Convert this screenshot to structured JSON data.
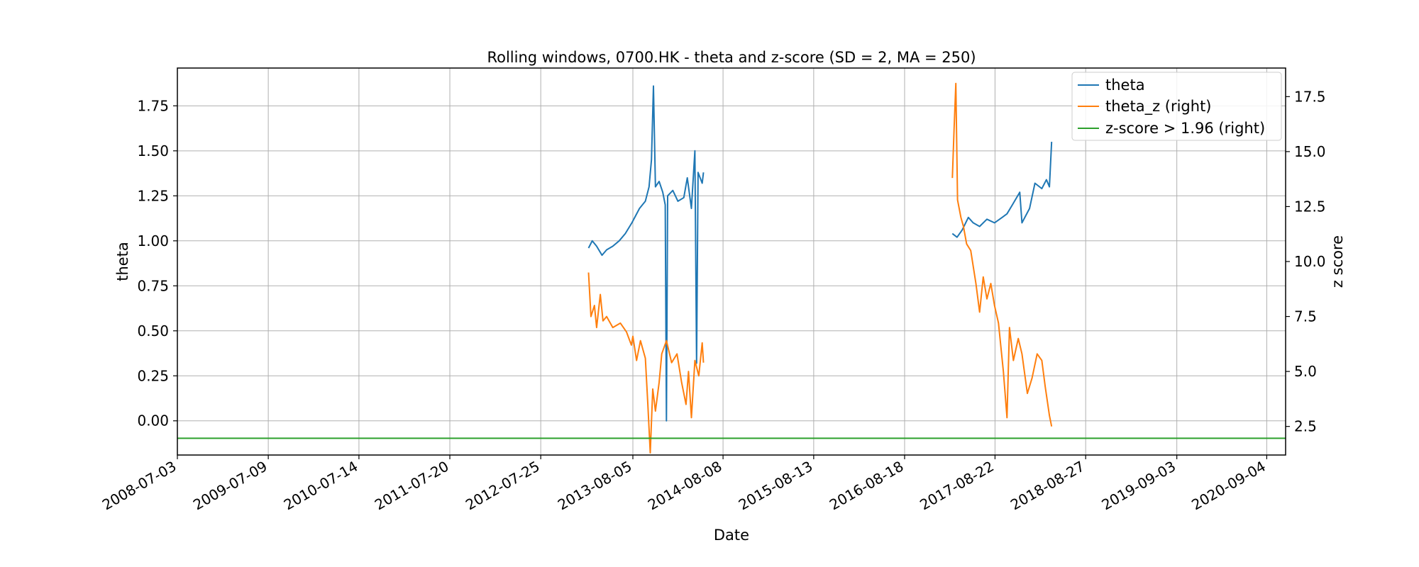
{
  "chart_data": {
    "type": "line",
    "title": "Rolling windows, 0700.HK - theta and z-score (SD = 2, MA = 250)",
    "xlabel": "Date",
    "ylabel": "theta",
    "ylabel_right": "z score",
    "xlim": [
      "2008-07-03",
      "2020-11-20"
    ],
    "ylim": [
      -0.19,
      1.96
    ],
    "ylim_right": [
      1.2,
      18.8
    ],
    "x_tick_labels": [
      "2008-07-03",
      "2009-07-09",
      "2010-07-14",
      "2011-07-20",
      "2012-07-25",
      "2013-08-05",
      "2014-08-08",
      "2015-08-13",
      "2016-08-18",
      "2017-08-22",
      "2018-08-27",
      "2019-09-03",
      "2020-09-04"
    ],
    "y_ticks": [
      0.0,
      0.25,
      0.5,
      0.75,
      1.0,
      1.25,
      1.5,
      1.75
    ],
    "y_tick_labels": [
      "0.00",
      "0.25",
      "0.50",
      "0.75",
      "1.00",
      "1.25",
      "1.50",
      "1.75"
    ],
    "y_ticks_right": [
      2.5,
      5.0,
      7.5,
      10.0,
      12.5,
      15.0,
      17.5
    ],
    "y_tick_labels_right": [
      "2.5",
      "5.0",
      "7.5",
      "10.0",
      "12.5",
      "15.0",
      "17.5"
    ],
    "grid": true,
    "legend_position": "top-right",
    "series": [
      {
        "name": "theta",
        "axis": "left",
        "color": "#1f77b4",
        "segments": [
          [
            [
              "2013-02-05",
              0.96
            ],
            [
              "2013-02-20",
              1.0
            ],
            [
              "2013-03-10",
              0.97
            ],
            [
              "2013-04-01",
              0.92
            ],
            [
              "2013-04-20",
              0.95
            ],
            [
              "2013-05-15",
              0.97
            ],
            [
              "2013-06-10",
              1.0
            ],
            [
              "2013-07-05",
              1.04
            ],
            [
              "2013-08-01",
              1.1
            ],
            [
              "2013-09-01",
              1.18
            ],
            [
              "2013-09-25",
              1.22
            ],
            [
              "2013-10-10",
              1.3
            ],
            [
              "2013-10-20",
              1.45
            ],
            [
              "2013-10-28",
              1.86
            ],
            [
              "2013-11-05",
              1.3
            ],
            [
              "2013-11-20",
              1.33
            ],
            [
              "2013-12-05",
              1.27
            ],
            [
              "2013-12-15",
              1.2
            ],
            [
              "2013-12-20",
              0.0
            ],
            [
              "2013-12-25",
              1.25
            ],
            [
              "2014-01-15",
              1.28
            ],
            [
              "2014-02-05",
              1.22
            ],
            [
              "2014-03-01",
              1.24
            ],
            [
              "2014-03-15",
              1.35
            ],
            [
              "2014-04-01",
              1.18
            ],
            [
              "2014-04-15",
              1.5
            ],
            [
              "2014-04-22",
              0.32
            ],
            [
              "2014-04-28",
              1.38
            ],
            [
              "2014-05-15",
              1.32
            ],
            [
              "2014-05-20",
              1.38
            ]
          ],
          [
            [
              "2017-03-01",
              1.04
            ],
            [
              "2017-03-20",
              1.02
            ],
            [
              "2017-04-10",
              1.06
            ],
            [
              "2017-05-05",
              1.13
            ],
            [
              "2017-05-25",
              1.1
            ],
            [
              "2017-06-20",
              1.08
            ],
            [
              "2017-07-20",
              1.12
            ],
            [
              "2017-08-20",
              1.1
            ],
            [
              "2017-09-20",
              1.13
            ],
            [
              "2017-10-10",
              1.15
            ],
            [
              "2017-11-01",
              1.2
            ],
            [
              "2017-12-01",
              1.27
            ],
            [
              "2017-12-10",
              1.1
            ],
            [
              "2018-01-10",
              1.18
            ],
            [
              "2018-02-01",
              1.32
            ],
            [
              "2018-03-01",
              1.29
            ],
            [
              "2018-03-20",
              1.34
            ],
            [
              "2018-04-01",
              1.3
            ],
            [
              "2018-04-10",
              1.55
            ]
          ]
        ]
      },
      {
        "name": "theta_z (right)",
        "axis": "right",
        "color": "#ff7f0e",
        "segments": [
          [
            [
              "2013-02-05",
              9.5
            ],
            [
              "2013-02-15",
              7.5
            ],
            [
              "2013-03-01",
              8.0
            ],
            [
              "2013-03-10",
              7.0
            ],
            [
              "2013-03-25",
              8.5
            ],
            [
              "2013-04-05",
              7.3
            ],
            [
              "2013-04-20",
              7.5
            ],
            [
              "2013-05-15",
              7.0
            ],
            [
              "2013-06-15",
              7.2
            ],
            [
              "2013-07-10",
              6.8
            ],
            [
              "2013-07-30",
              6.2
            ],
            [
              "2013-08-05",
              6.6
            ],
            [
              "2013-08-20",
              5.5
            ],
            [
              "2013-09-05",
              6.4
            ],
            [
              "2013-09-25",
              5.6
            ],
            [
              "2013-10-05",
              3.5
            ],
            [
              "2013-10-15",
              1.3
            ],
            [
              "2013-10-25",
              4.2
            ],
            [
              "2013-11-05",
              3.2
            ],
            [
              "2013-11-20",
              4.5
            ],
            [
              "2013-12-01",
              5.8
            ],
            [
              "2013-12-20",
              6.4
            ],
            [
              "2014-01-10",
              5.4
            ],
            [
              "2014-02-01",
              5.8
            ],
            [
              "2014-02-20",
              4.5
            ],
            [
              "2014-03-10",
              3.5
            ],
            [
              "2014-03-20",
              5.0
            ],
            [
              "2014-04-01",
              2.9
            ],
            [
              "2014-04-15",
              5.5
            ],
            [
              "2014-05-01",
              4.8
            ],
            [
              "2014-05-15",
              6.3
            ],
            [
              "2014-05-20",
              5.4
            ]
          ],
          [
            [
              "2017-03-01",
              13.8
            ],
            [
              "2017-03-08",
              16.0
            ],
            [
              "2017-03-15",
              18.1
            ],
            [
              "2017-03-22",
              12.8
            ],
            [
              "2017-04-05",
              12.0
            ],
            [
              "2017-04-15",
              11.6
            ],
            [
              "2017-04-28",
              10.8
            ],
            [
              "2017-05-15",
              10.5
            ],
            [
              "2017-06-05",
              9.0
            ],
            [
              "2017-06-20",
              7.7
            ],
            [
              "2017-07-05",
              9.3
            ],
            [
              "2017-07-20",
              8.3
            ],
            [
              "2017-08-05",
              9.0
            ],
            [
              "2017-08-20",
              8.0
            ],
            [
              "2017-09-05",
              7.2
            ],
            [
              "2017-09-25",
              5.0
            ],
            [
              "2017-10-10",
              2.9
            ],
            [
              "2017-10-20",
              7.0
            ],
            [
              "2017-11-05",
              5.5
            ],
            [
              "2017-11-25",
              6.5
            ],
            [
              "2017-12-10",
              5.8
            ],
            [
              "2018-01-01",
              4.0
            ],
            [
              "2018-01-20",
              4.7
            ],
            [
              "2018-02-10",
              5.8
            ],
            [
              "2018-03-01",
              5.5
            ],
            [
              "2018-03-15",
              4.3
            ],
            [
              "2018-04-01",
              3.0
            ],
            [
              "2018-04-10",
              2.5
            ]
          ]
        ]
      },
      {
        "name": "z-score > 1.96 (right)",
        "axis": "right",
        "color": "#2ca02c",
        "segments": [
          [
            [
              "2008-07-03",
              1.96
            ],
            [
              "2020-11-20",
              1.96
            ]
          ]
        ]
      }
    ]
  }
}
